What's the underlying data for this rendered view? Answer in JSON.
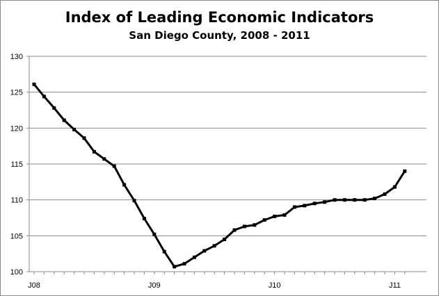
{
  "chart_data": {
    "type": "line",
    "title": "Index of Leading Economic Indicators",
    "subtitle": "San Diego County, 2008 - 2011",
    "xlabel": "",
    "ylabel": "",
    "ylim": [
      100,
      130
    ],
    "yticks": [
      100,
      105,
      110,
      115,
      120,
      125,
      130
    ],
    "xtick_labels": [
      {
        "label": "J08",
        "index": 0
      },
      {
        "label": "J09",
        "index": 12
      },
      {
        "label": "J10",
        "index": 24
      },
      {
        "label": "J11",
        "index": 36
      }
    ],
    "grid": true,
    "legend": "none",
    "series": [
      {
        "color": "#000000",
        "values": [
          126.1,
          124.4,
          122.8,
          121.1,
          119.8,
          118.6,
          116.7,
          115.7,
          114.7,
          112.1,
          109.9,
          107.4,
          105.2,
          102.8,
          100.7,
          101.1,
          102.0,
          102.9,
          103.6,
          104.5,
          105.8,
          106.3,
          106.5,
          107.2,
          107.7,
          107.9,
          109.0,
          109.2,
          109.5,
          109.7,
          110.0,
          110.0,
          110.0,
          110.0,
          110.2,
          110.8,
          111.8,
          114.0
        ]
      }
    ]
  }
}
